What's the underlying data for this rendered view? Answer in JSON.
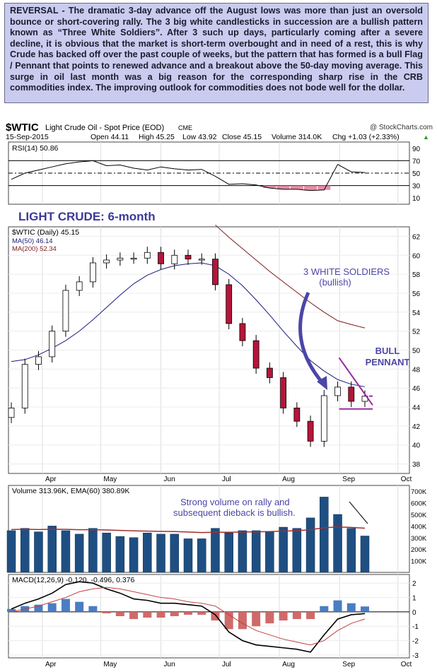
{
  "commentary": "REVERSAL - The dramatic 3-day advance off the August lows was more than just an oversold bounce or short-covering rally. The 3 big white candlesticks in succession are a bullish pattern known as “Three White Soldiers”. After 3 such up days, particularly coming after a severe decline, it is obvious that the market is short-term overbought and in need of a rest, this is why Crude has backed off over the past couple of weeks, but the pattern that has formed is a bull Flag / Pennant that points to renewed advance and a breakout above the 50-day moving average. This surge in oil last month was a big reason for the corresponding sharp rise in the CRB commodities index. The improving outlook for commodities does not bode well for the dollar.",
  "header": {
    "symbol": "$WTIC",
    "name": "Light Crude Oil - Spot Price (EOD)",
    "exchange": "CME",
    "copyright": "@ StockCharts.com",
    "date": "15-Sep-2015",
    "open": "Open 44.11",
    "high": "High 45.25",
    "low": "Low 43.92",
    "close": "Close 45.15",
    "volume": "Volume 314.0K",
    "chg": "Chg +1.03 (+2.33%)",
    "chg_arrow": "▲"
  },
  "annotations": {
    "main_title": "LIGHT CRUDE: 6-month",
    "soldiers_line1": "3 WHITE SOLDIERS",
    "soldiers_line2": "(bullish)",
    "pennant_line1": "BULL",
    "pennant_line2": "PENNANT",
    "volume_note_line1": "Strong volume on rally and",
    "volume_note_line2": "subsequent dieback is bullish."
  },
  "colors": {
    "up": "#ffffff",
    "down": "#b5153a",
    "ma50": "#1a1a7a",
    "ma200": "#7a1a1a",
    "rsi": "#000000",
    "rsi_fill": "#e07090",
    "volume": "#1f4f82",
    "volume_ema": "#a03030",
    "macd": "#000000",
    "signal": "#c04040",
    "histogram_pos": "#4a7dc4",
    "histogram_neg": "#d06a6a",
    "annotation": "#4b46a8",
    "pennant": "#9b2aa0",
    "panel_bg_title": "#1c2b80"
  },
  "chart_data": [
    {
      "type": "line",
      "panel": "rsi",
      "legend": "RSI(14) 50.86",
      "ylim": [
        0,
        100
      ],
      "yticks": [
        10,
        30,
        50,
        70,
        90
      ],
      "reference_lines": [
        30,
        50,
        70
      ],
      "x": [
        "2015-03-16",
        "2015-03-23",
        "2015-03-30",
        "2015-04-06",
        "2015-04-13",
        "2015-04-20",
        "2015-04-27",
        "2015-05-04",
        "2015-05-11",
        "2015-05-18",
        "2015-05-25",
        "2015-06-01",
        "2015-06-08",
        "2015-06-15",
        "2015-06-22",
        "2015-06-29",
        "2015-07-06",
        "2015-07-13",
        "2015-07-20",
        "2015-07-27",
        "2015-08-03",
        "2015-08-10",
        "2015-08-17",
        "2015-08-24",
        "2015-08-31",
        "2015-09-07",
        "2015-09-14"
      ],
      "values": [
        40,
        50,
        55,
        60,
        65,
        68,
        70,
        62,
        63,
        58,
        55,
        60,
        57,
        55,
        56,
        45,
        32,
        33,
        31,
        26,
        24,
        24,
        22,
        23,
        64,
        52,
        51
      ]
    },
    {
      "type": "candlestick",
      "panel": "price",
      "legend": [
        "$WTIC (Daily) 45.15",
        "MA(50) 46.14",
        "MA(200) 52.34"
      ],
      "ylim": [
        37,
        63
      ],
      "yticks": [
        38,
        40,
        42,
        44,
        46,
        48,
        50,
        52,
        54,
        56,
        58,
        60,
        62
      ],
      "xticks": [
        "Apr",
        "May",
        "Jun",
        "Jul",
        "Aug",
        "Sep",
        "Oct"
      ],
      "x": [
        "2015-03-16",
        "2015-03-23",
        "2015-03-30",
        "2015-04-06",
        "2015-04-13",
        "2015-04-20",
        "2015-04-27",
        "2015-05-04",
        "2015-05-11",
        "2015-05-18",
        "2015-05-25",
        "2015-06-01",
        "2015-06-08",
        "2015-06-15",
        "2015-06-22",
        "2015-06-29",
        "2015-07-06",
        "2015-07-13",
        "2015-07-20",
        "2015-07-27",
        "2015-08-03",
        "2015-08-10",
        "2015-08-17",
        "2015-08-24",
        "2015-08-31",
        "2015-09-07",
        "2015-09-14"
      ],
      "close": [
        43.9,
        48.5,
        49.3,
        52.0,
        56.3,
        57.2,
        59.2,
        59.5,
        59.7,
        59.7,
        60.3,
        59.1,
        60.0,
        59.6,
        59.6,
        56.9,
        52.8,
        51.0,
        48.1,
        47.1,
        43.9,
        42.5,
        40.4,
        45.2,
        46.1,
        44.6,
        45.15
      ],
      "series": [
        {
          "name": "MA(50)",
          "values": [
            48.8,
            49.0,
            49.5,
            50.2,
            51.0,
            52.0,
            53.2,
            54.5,
            55.8,
            57.0,
            57.9,
            58.5,
            58.9,
            59.1,
            59.2,
            58.9,
            58.0,
            56.8,
            55.3,
            53.7,
            52.0,
            50.4,
            48.9,
            47.8,
            46.9,
            46.4,
            46.14
          ]
        },
        {
          "name": "MA(200)",
          "values": [
            null,
            null,
            null,
            null,
            null,
            null,
            null,
            null,
            null,
            null,
            null,
            null,
            null,
            null,
            null,
            63.2,
            61.9,
            60.7,
            59.5,
            58.3,
            57.2,
            56.1,
            55.0,
            54.0,
            53.1,
            52.7,
            52.34
          ]
        }
      ]
    },
    {
      "type": "bar",
      "panel": "volume",
      "legend": "Volume 313.96K, EMA(60) 380.89K",
      "ylim": [
        0,
        750000
      ],
      "yticks": [
        "100K",
        "200K",
        "300K",
        "400K",
        "500K",
        "600K",
        "700K"
      ],
      "x": [
        "2015-03-16",
        "2015-03-23",
        "2015-03-30",
        "2015-04-06",
        "2015-04-13",
        "2015-04-20",
        "2015-04-27",
        "2015-05-04",
        "2015-05-11",
        "2015-05-18",
        "2015-05-25",
        "2015-06-01",
        "2015-06-08",
        "2015-06-15",
        "2015-06-22",
        "2015-06-29",
        "2015-07-06",
        "2015-07-13",
        "2015-07-20",
        "2015-07-27",
        "2015-08-03",
        "2015-08-10",
        "2015-08-17",
        "2015-08-24",
        "2015-08-31",
        "2015-09-07",
        "2015-09-14"
      ],
      "values": [
        360000,
        380000,
        350000,
        400000,
        360000,
        330000,
        380000,
        340000,
        310000,
        300000,
        340000,
        330000,
        330000,
        290000,
        290000,
        380000,
        340000,
        360000,
        360000,
        350000,
        390000,
        380000,
        470000,
        650000,
        500000,
        380000,
        314000
      ],
      "series": [
        {
          "name": "EMA(60)",
          "values": [
            370000,
            372000,
            370000,
            372000,
            371000,
            368000,
            368000,
            366000,
            362000,
            358000,
            356000,
            354000,
            352000,
            348000,
            344000,
            346000,
            346000,
            348000,
            350000,
            352000,
            356000,
            360000,
            368000,
            385000,
            392000,
            388000,
            380890
          ]
        }
      ]
    },
    {
      "type": "line",
      "panel": "macd",
      "legend": "MACD(12,26,9) -0.120, -0.496, 0.376",
      "ylim": [
        -3.2,
        2.6
      ],
      "yticks": [
        -3,
        -2,
        -1,
        0,
        1,
        2
      ],
      "xticks": [
        "Apr",
        "May",
        "Jun",
        "Jul",
        "Aug",
        "Sep",
        "Oct"
      ],
      "x": [
        "2015-03-16",
        "2015-03-23",
        "2015-03-30",
        "2015-04-06",
        "2015-04-13",
        "2015-04-20",
        "2015-04-27",
        "2015-05-04",
        "2015-05-11",
        "2015-05-18",
        "2015-05-25",
        "2015-06-01",
        "2015-06-08",
        "2015-06-15",
        "2015-06-22",
        "2015-06-29",
        "2015-07-06",
        "2015-07-13",
        "2015-07-20",
        "2015-07-27",
        "2015-08-03",
        "2015-08-10",
        "2015-08-17",
        "2015-08-24",
        "2015-08-31",
        "2015-09-07",
        "2015-09-14"
      ],
      "series": [
        {
          "name": "MACD",
          "values": [
            0.2,
            0.6,
            0.9,
            1.3,
            1.9,
            2.1,
            2.0,
            1.6,
            1.3,
            0.9,
            0.8,
            0.6,
            0.6,
            0.5,
            0.4,
            -0.2,
            -1.4,
            -2.0,
            -2.3,
            -2.4,
            -2.5,
            -2.6,
            -2.8,
            -1.6,
            -0.5,
            -0.2,
            -0.12
          ]
        },
        {
          "name": "Signal",
          "values": [
            0.0,
            0.2,
            0.4,
            0.7,
            1.0,
            1.4,
            1.6,
            1.7,
            1.6,
            1.4,
            1.2,
            1.0,
            0.9,
            0.7,
            0.6,
            0.4,
            -0.2,
            -0.8,
            -1.3,
            -1.6,
            -1.9,
            -2.1,
            -2.3,
            -2.0,
            -1.3,
            -0.8,
            -0.496
          ]
        },
        {
          "name": "Histogram",
          "values": [
            0.2,
            0.4,
            0.5,
            0.6,
            0.9,
            0.7,
            0.4,
            -0.1,
            -0.3,
            -0.5,
            -0.4,
            -0.4,
            -0.3,
            -0.2,
            -0.2,
            -0.6,
            -1.2,
            -1.2,
            -1.0,
            -0.8,
            -0.6,
            -0.5,
            -0.5,
            0.4,
            0.8,
            0.6,
            0.376
          ]
        }
      ]
    }
  ]
}
